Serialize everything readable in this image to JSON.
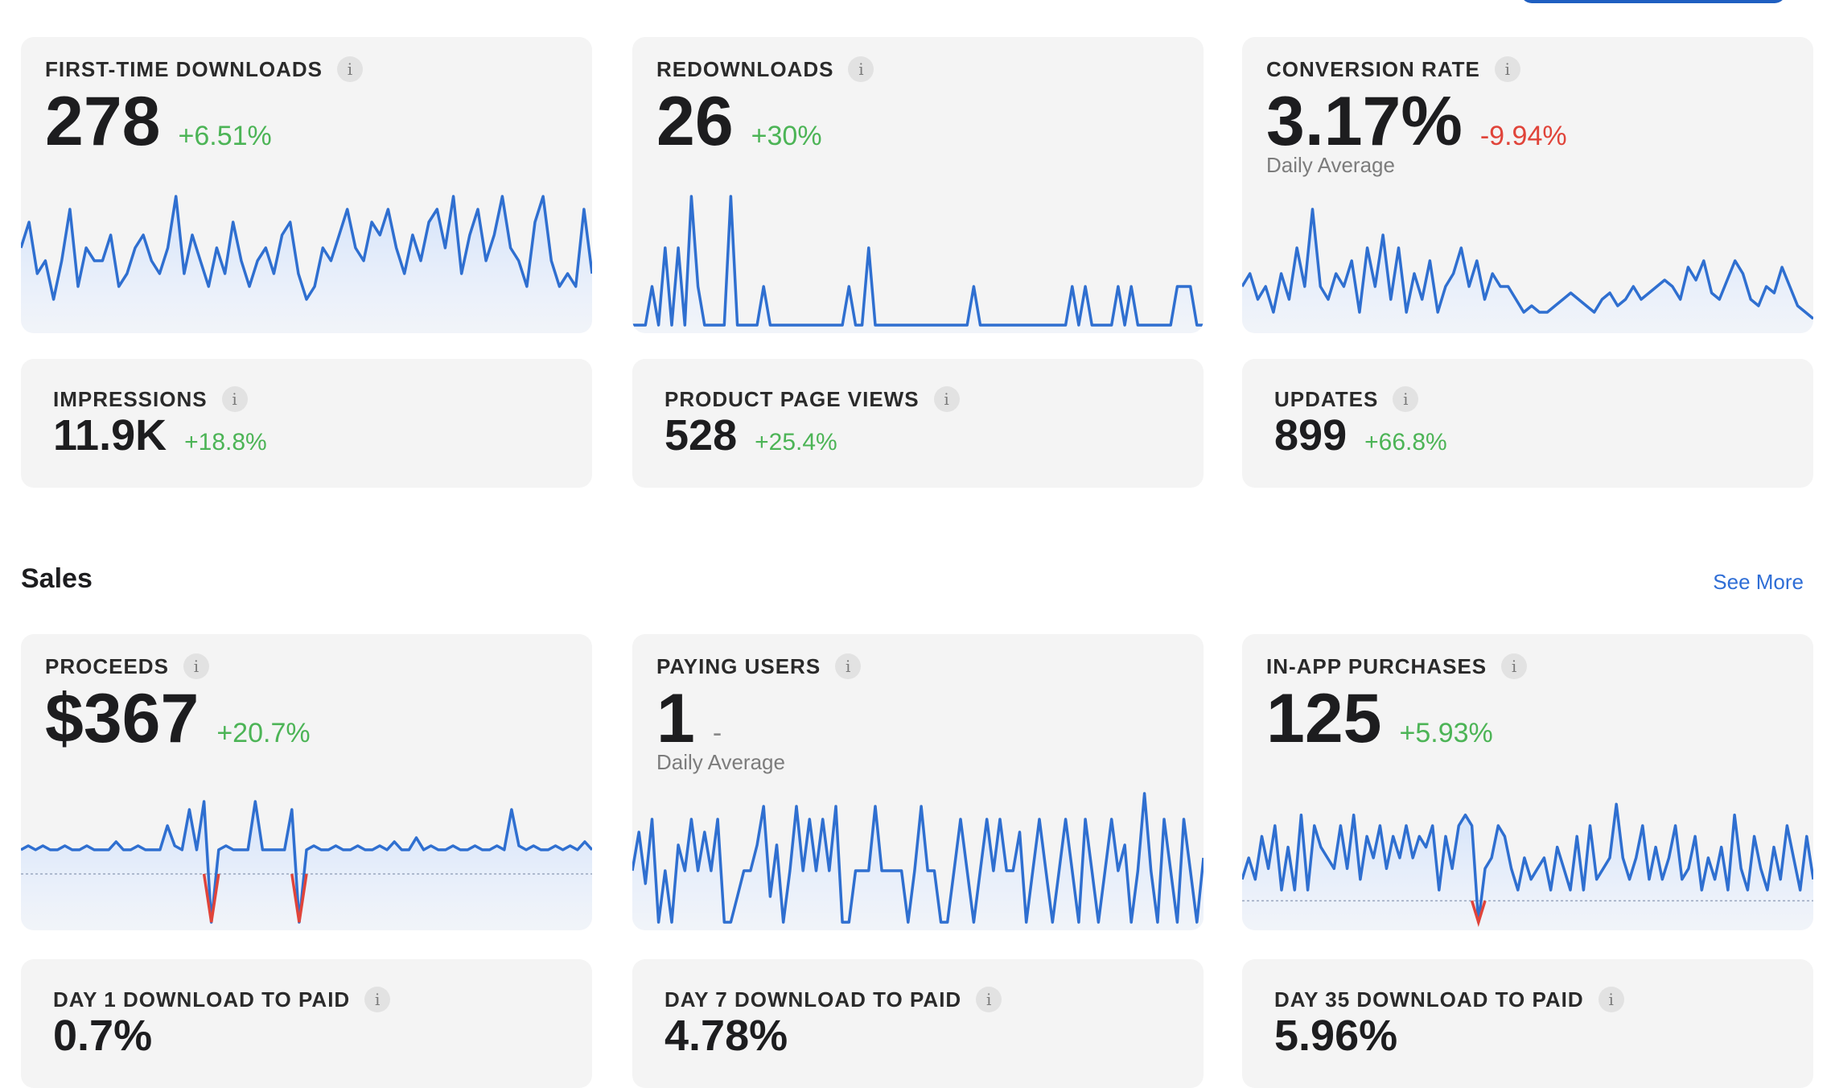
{
  "colors": {
    "accent": "#1f5fc1",
    "positive": "#4cb456",
    "negative": "#e0443a",
    "line": "#2f6fd0"
  },
  "downloads": {
    "first_time": {
      "title": "FIRST-TIME DOWNLOADS",
      "value": "278",
      "delta": "+6.51%",
      "spark": [
        0.6,
        0.8,
        0.4,
        0.5,
        0.2,
        0.5,
        0.9,
        0.3,
        0.6,
        0.5,
        0.5,
        0.7,
        0.3,
        0.4,
        0.6,
        0.7,
        0.5,
        0.4,
        0.6,
        1.0,
        0.4,
        0.7,
        0.5,
        0.3,
        0.6,
        0.4,
        0.8,
        0.5,
        0.3,
        0.5,
        0.6,
        0.4,
        0.7,
        0.8,
        0.4,
        0.2,
        0.3,
        0.6,
        0.5,
        0.7,
        0.9,
        0.6,
        0.5,
        0.8,
        0.7,
        0.9,
        0.6,
        0.4,
        0.7,
        0.5,
        0.8,
        0.9,
        0.6,
        1.0,
        0.4,
        0.7,
        0.9,
        0.5,
        0.7,
        1.0,
        0.6,
        0.5,
        0.3,
        0.8,
        1.0,
        0.5,
        0.3,
        0.4,
        0.3,
        0.9,
        0.4
      ]
    },
    "redownloads": {
      "title": "REDOWNLOADS",
      "value": "26",
      "delta": "+30%",
      "spark": [
        0,
        0,
        0,
        0.3,
        0,
        0.6,
        0,
        0.6,
        0,
        1,
        0.3,
        0,
        0,
        0,
        0,
        1,
        0,
        0,
        0,
        0,
        0.3,
        0,
        0,
        0,
        0,
        0,
        0,
        0,
        0,
        0,
        0,
        0,
        0,
        0.3,
        0,
        0,
        0.6,
        0,
        0,
        0,
        0,
        0,
        0,
        0,
        0,
        0,
        0,
        0,
        0,
        0,
        0,
        0,
        0.3,
        0,
        0,
        0,
        0,
        0,
        0,
        0,
        0,
        0,
        0,
        0,
        0,
        0,
        0,
        0.3,
        0,
        0.3,
        0,
        0,
        0,
        0,
        0.3,
        0,
        0.3,
        0,
        0,
        0,
        0,
        0,
        0,
        0.3,
        0.3,
        0.3,
        0,
        0
      ]
    },
    "conversion": {
      "title": "CONVERSION RATE",
      "value": "3.17%",
      "delta": "-9.94%",
      "subtitle": "Daily Average",
      "spark": [
        0.3,
        0.4,
        0.2,
        0.3,
        0.1,
        0.4,
        0.2,
        0.6,
        0.3,
        0.9,
        0.3,
        0.2,
        0.4,
        0.3,
        0.5,
        0.1,
        0.6,
        0.3,
        0.7,
        0.2,
        0.6,
        0.1,
        0.4,
        0.2,
        0.5,
        0.1,
        0.3,
        0.4,
        0.6,
        0.3,
        0.5,
        0.2,
        0.4,
        0.3,
        0.3,
        0.2,
        0.1,
        0.15,
        0.1,
        0.1,
        0.15,
        0.2,
        0.25,
        0.2,
        0.15,
        0.1,
        0.2,
        0.25,
        0.15,
        0.2,
        0.3,
        0.2,
        0.25,
        0.3,
        0.35,
        0.3,
        0.2,
        0.45,
        0.35,
        0.5,
        0.25,
        0.2,
        0.35,
        0.5,
        0.4,
        0.2,
        0.15,
        0.3,
        0.25,
        0.45,
        0.3,
        0.15,
        0.1,
        0.05
      ]
    },
    "impressions": {
      "title": "IMPRESSIONS",
      "value": "11.9K",
      "delta": "+18.8%"
    },
    "page_views": {
      "title": "PRODUCT PAGE VIEWS",
      "value": "528",
      "delta": "+25.4%"
    },
    "updates": {
      "title": "UPDATES",
      "value": "899",
      "delta": "+66.8%"
    }
  },
  "sales": {
    "section_title": "Sales",
    "see_more": "See More",
    "proceeds": {
      "title": "PROCEEDS",
      "value": "$367",
      "delta": "+20.7%",
      "spark": [
        0.3,
        0.35,
        0.3,
        0.35,
        0.3,
        0.3,
        0.35,
        0.3,
        0.3,
        0.35,
        0.3,
        0.3,
        0.3,
        0.4,
        0.3,
        0.3,
        0.35,
        0.3,
        0.3,
        0.3,
        0.6,
        0.35,
        0.3,
        0.8,
        0.3,
        0.9,
        -0.6,
        0.3,
        0.35,
        0.3,
        0.3,
        0.3,
        0.9,
        0.3,
        0.3,
        0.3,
        0.3,
        0.8,
        -0.6,
        0.3,
        0.35,
        0.3,
        0.3,
        0.35,
        0.3,
        0.3,
        0.35,
        0.3,
        0.3,
        0.35,
        0.3,
        0.4,
        0.3,
        0.3,
        0.45,
        0.3,
        0.35,
        0.3,
        0.3,
        0.35,
        0.3,
        0.3,
        0.35,
        0.3,
        0.3,
        0.35,
        0.3,
        0.8,
        0.35,
        0.3,
        0.35,
        0.3,
        0.3,
        0.35,
        0.3,
        0.35,
        0.3,
        0.4,
        0.3
      ]
    },
    "paying_users": {
      "title": "PAYING USERS",
      "value": "1",
      "delta": "-",
      "subtitle": "Daily Average",
      "spark": [
        0.4,
        0.7,
        0.3,
        0.8,
        0,
        0.4,
        0,
        0.6,
        0.4,
        0.8,
        0.4,
        0.7,
        0.4,
        0.8,
        0,
        0,
        0.2,
        0.4,
        0.4,
        0.6,
        0.9,
        0.2,
        0.6,
        0,
        0.4,
        0.9,
        0.4,
        0.8,
        0.4,
        0.8,
        0.4,
        0.9,
        0,
        0,
        0.4,
        0.4,
        0.4,
        0.9,
        0.4,
        0.4,
        0.4,
        0.4,
        0,
        0.4,
        0.9,
        0.4,
        0.4,
        0,
        0,
        0.4,
        0.8,
        0.4,
        0,
        0.4,
        0.8,
        0.4,
        0.8,
        0.4,
        0.4,
        0.7,
        0,
        0.4,
        0.8,
        0.4,
        0,
        0.4,
        0.8,
        0.4,
        0,
        0.8,
        0.4,
        0,
        0.4,
        0.8,
        0.4,
        0.6,
        0,
        0.4,
        1,
        0.4,
        0,
        0.8,
        0.4,
        0,
        0.8,
        0.4,
        0,
        0.5
      ]
    },
    "iap": {
      "title": "IN-APP PURCHASES",
      "value": "125",
      "delta": "+5.93%",
      "spark": [
        0.2,
        0.4,
        0.2,
        0.6,
        0.3,
        0.7,
        0.1,
        0.5,
        0.1,
        0.8,
        0.1,
        0.7,
        0.5,
        0.4,
        0.3,
        0.7,
        0.3,
        0.8,
        0.2,
        0.6,
        0.4,
        0.7,
        0.3,
        0.6,
        0.4,
        0.7,
        0.4,
        0.6,
        0.5,
        0.7,
        0.1,
        0.6,
        0.3,
        0.7,
        0.8,
        0.7,
        -0.2,
        0.3,
        0.4,
        0.7,
        0.6,
        0.3,
        0.1,
        0.4,
        0.2,
        0.3,
        0.4,
        0.1,
        0.5,
        0.3,
        0.1,
        0.6,
        0.1,
        0.7,
        0.2,
        0.3,
        0.4,
        0.9,
        0.4,
        0.2,
        0.4,
        0.7,
        0.2,
        0.5,
        0.2,
        0.4,
        0.7,
        0.2,
        0.3,
        0.6,
        0.1,
        0.4,
        0.2,
        0.5,
        0.1,
        0.8,
        0.3,
        0.1,
        0.6,
        0.3,
        0.1,
        0.5,
        0.2,
        0.7,
        0.4,
        0.1,
        0.6,
        0.2
      ]
    },
    "day1": {
      "title": "DAY 1 DOWNLOAD TO PAID",
      "value": "0.7%"
    },
    "day7": {
      "title": "DAY 7 DOWNLOAD TO PAID",
      "value": "4.78%"
    },
    "day35": {
      "title": "DAY 35 DOWNLOAD TO PAID",
      "value": "5.96%"
    }
  },
  "info_glyph": "i"
}
